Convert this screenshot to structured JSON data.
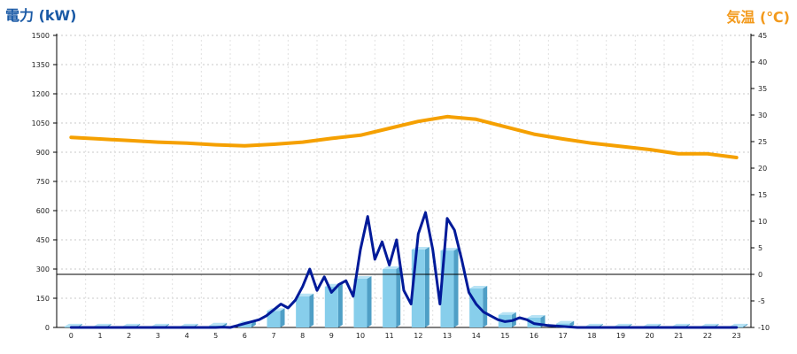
{
  "chart_data": {
    "type": "bar",
    "title_left": "電力 (kW)",
    "title_right": "気温 (℃)",
    "y_left": {
      "min": 0,
      "max": 1500,
      "ticks": [
        "0",
        "150",
        "300",
        "450",
        "600",
        "750",
        "900",
        "1050",
        "1200",
        "1350",
        "1500"
      ]
    },
    "y_right": {
      "min": -10,
      "max": 45,
      "ticks": [
        "-10",
        "-5",
        "0",
        "5",
        "10",
        "15",
        "20",
        "25",
        "30",
        "35",
        "40",
        "45"
      ]
    },
    "categories": [
      "0",
      "1",
      "2",
      "3",
      "4",
      "5",
      "6",
      "7",
      "8",
      "9",
      "10",
      "11",
      "12",
      "13",
      "14",
      "15",
      "16",
      "17",
      "18",
      "19",
      "20",
      "21",
      "22",
      "23"
    ],
    "grid": true,
    "series": [
      {
        "kind": "bar",
        "axis": "left",
        "color": "#87ceeb",
        "values": [
          5,
          5,
          5,
          5,
          5,
          10,
          20,
          85,
          160,
          210,
          250,
          300,
          400,
          395,
          200,
          65,
          50,
          20,
          5,
          5,
          5,
          5,
          5,
          5
        ]
      },
      {
        "kind": "line",
        "axis": "left",
        "color": "#001a99",
        "x": [
          0,
          0.5,
          1,
          1.5,
          2,
          2.5,
          3,
          3.5,
          4,
          4.5,
          5,
          5.25,
          5.5,
          5.75,
          6,
          6.25,
          6.5,
          6.75,
          7,
          7.25,
          7.5,
          7.75,
          8,
          8.25,
          8.5,
          8.75,
          9,
          9.25,
          9.5,
          9.75,
          10,
          10.25,
          10.5,
          10.75,
          11,
          11.25,
          11.5,
          11.75,
          12,
          12.25,
          12.5,
          12.75,
          13,
          13.25,
          13.5,
          13.75,
          14,
          14.25,
          14.5,
          14.75,
          15,
          15.25,
          15.5,
          15.75,
          16,
          16.5,
          17,
          17.5,
          18,
          18.5,
          19,
          19.5,
          20,
          20.5,
          21,
          21.5,
          22,
          22.5,
          23
        ],
        "values": [
          0,
          0,
          0,
          0,
          0,
          0,
          0,
          0,
          0,
          0,
          0,
          2,
          0,
          10,
          20,
          30,
          40,
          60,
          90,
          120,
          100,
          140,
          210,
          300,
          190,
          260,
          180,
          220,
          240,
          160,
          400,
          570,
          350,
          440,
          320,
          450,
          190,
          120,
          480,
          590,
          400,
          120,
          560,
          500,
          350,
          180,
          120,
          80,
          60,
          40,
          30,
          35,
          50,
          40,
          20,
          10,
          5,
          0,
          0,
          0,
          0,
          0,
          0,
          0,
          0,
          0,
          0,
          0,
          0
        ]
      },
      {
        "kind": "line",
        "axis": "right",
        "color": "#f5a000",
        "x": [
          0,
          1,
          2,
          3,
          4,
          5,
          6,
          7,
          8,
          9,
          10,
          11,
          12,
          13,
          14,
          15,
          16,
          17,
          18,
          19,
          20,
          21,
          22,
          23
        ],
        "values": [
          25.8,
          25.5,
          25.2,
          24.9,
          24.7,
          24.4,
          24.2,
          24.5,
          24.9,
          25.6,
          26.2,
          27.5,
          28.8,
          29.7,
          29.2,
          27.8,
          26.4,
          25.5,
          24.7,
          24.1,
          23.5,
          22.7,
          22.7,
          22.0
        ]
      }
    ]
  }
}
